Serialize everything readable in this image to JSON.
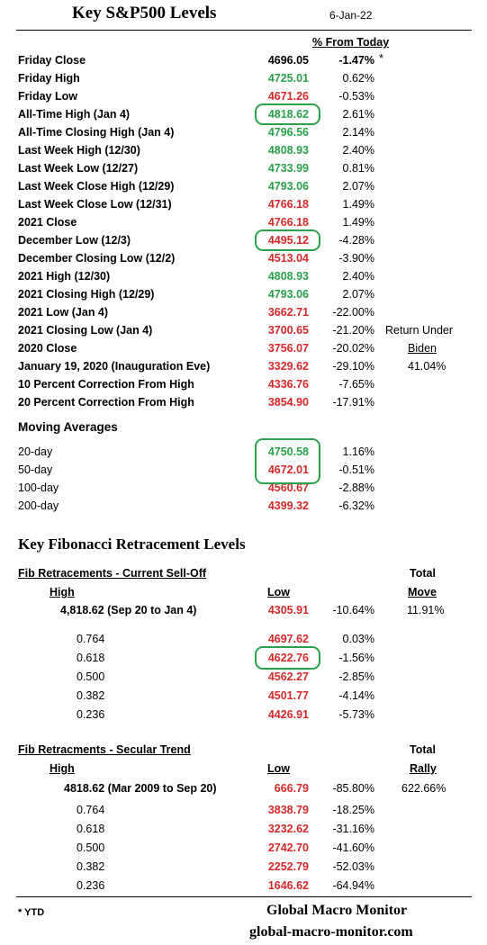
{
  "header": {
    "title": "Key S&P500 Levels",
    "date": "6-Jan-22",
    "pct_header": "% From Today"
  },
  "levels": [
    {
      "label": "Friday Close",
      "value": "4696.05",
      "pct": "-1.47%",
      "color": "black",
      "pct_bold": true,
      "mark": "*"
    },
    {
      "label": "Friday High",
      "value": "4725.01",
      "pct": "0.62%",
      "color": "green"
    },
    {
      "label": "Friday Low",
      "value": "4671.26",
      "pct": "-0.53%",
      "color": "red"
    },
    {
      "label": "All-Time High (Jan 4)",
      "value": "4818.62",
      "pct": "2.61%",
      "color": "green",
      "circled": true
    },
    {
      "label": "All-Time Closing High (Jan 4)",
      "value": "4796.56",
      "pct": "2.14%",
      "color": "green"
    },
    {
      "label": "Last Week High (12/30)",
      "value": "4808.93",
      "pct": "2.40%",
      "color": "green"
    },
    {
      "label": "Last  Week Low  (12/27)",
      "value": "4733.99",
      "pct": "0.81%",
      "color": "green"
    },
    {
      "label": "Last Week Close High (12/29)",
      "value": "4793.06",
      "pct": "2.07%",
      "color": "green"
    },
    {
      "label": "Last Week Close Low  (12/31)",
      "value": "4766.18",
      "pct": "1.49%",
      "color": "red"
    },
    {
      "label": "2021 Close",
      "value": "4766.18",
      "pct": "1.49%",
      "color": "red"
    },
    {
      "label": "December Low (12/3)",
      "value": "4495.12",
      "pct": "-4.28%",
      "color": "red",
      "circled": true
    },
    {
      "label": "December Closing Low (12/2)",
      "value": "4513.04",
      "pct": "-3.90%",
      "color": "red"
    },
    {
      "label": "2021 High (12/30)",
      "value": "4808.93",
      "pct": "2.40%",
      "color": "green"
    },
    {
      "label": "2021 Closing High (12/29)",
      "value": "4793.06",
      "pct": "2.07%",
      "color": "green"
    },
    {
      "label": "2021 Low (Jan 4)",
      "value": "3662.71",
      "pct": "-22.00%",
      "color": "red"
    },
    {
      "label": "2021 Closing Low (Jan 4)",
      "value": "3700.65",
      "pct": "-21.20%",
      "color": "red"
    },
    {
      "label": "2020 Close",
      "value": "3756.07",
      "pct": "-20.02%",
      "color": "red"
    },
    {
      "label": "January 19, 2020 (Inauguration Eve)",
      "value": "3329.62",
      "pct": "-29.10%",
      "color": "red"
    },
    {
      "label": "10 Percent Correction From High",
      "value": "4336.76",
      "pct": "-7.65%",
      "color": "red"
    },
    {
      "label": "20 Percent Correction From High",
      "value": "3854.90",
      "pct": "-17.91%",
      "color": "red"
    }
  ],
  "biden_note": {
    "line1": "Return Under",
    "line2": "Biden",
    "value": "41.04%"
  },
  "moving_averages": {
    "title": "Moving Averages",
    "rows": [
      {
        "label": "20-day",
        "value": "4750.58",
        "pct": "1.16%",
        "color": "green"
      },
      {
        "label": "50-day",
        "value": "4672.01",
        "pct": "-0.51%",
        "color": "red"
      },
      {
        "label": "100-day",
        "value": "4560.67",
        "pct": "-2.88%",
        "color": "red"
      },
      {
        "label": "200-day",
        "value": "4399.32",
        "pct": "-6.32%",
        "color": "red"
      }
    ]
  },
  "fib": {
    "title": "Key Fibonacci Retracement Levels",
    "selloff": {
      "heading": "Fib Retracements - Current Sell-Off",
      "total_label": "Total",
      "high_label": "High",
      "low_label": "Low",
      "move_label": "Move",
      "range_text": "4,818.62  (Sep 20 to Jan 4)",
      "range_low": "4305.91",
      "range_pct": "-10.64%",
      "range_total": "11.91%",
      "rows": [
        {
          "ratio": "0.764",
          "value": "4697.62",
          "pct": "0.03%"
        },
        {
          "ratio": "0.618",
          "value": "4622.76",
          "pct": "-1.56%"
        },
        {
          "ratio": "0.500",
          "value": "4562.27",
          "pct": "-2.85%"
        },
        {
          "ratio": "0.382",
          "value": "4501.77",
          "pct": "-4.14%"
        },
        {
          "ratio": "0.236",
          "value": "4426.91",
          "pct": "-5.73%"
        }
      ]
    },
    "secular": {
      "heading": "Fib Retracments - Secular Trend",
      "total_label": "Total",
      "high_label": "High",
      "low_label": "Low",
      "rally_label": "Rally",
      "range_text": "4818.62  (Mar 2009  to Sep 20)",
      "range_low": "666.79",
      "range_pct": "-85.80%",
      "range_total": "622.66%",
      "rows": [
        {
          "ratio": "0.764",
          "value": "3838.79",
          "pct": "-18.25%"
        },
        {
          "ratio": "0.618",
          "value": "3232.62",
          "pct": "-31.16%"
        },
        {
          "ratio": "0.500",
          "value": "2742.70",
          "pct": "-41.60%"
        },
        {
          "ratio": "0.382",
          "value": "2252.79",
          "pct": "-52.03%"
        },
        {
          "ratio": "0.236",
          "value": "1646.62",
          "pct": "-64.94%"
        }
      ]
    }
  },
  "footer": {
    "ytd": "* YTD",
    "brand": "Global Macro Monitor",
    "site": "global-macro-monitor.com"
  }
}
